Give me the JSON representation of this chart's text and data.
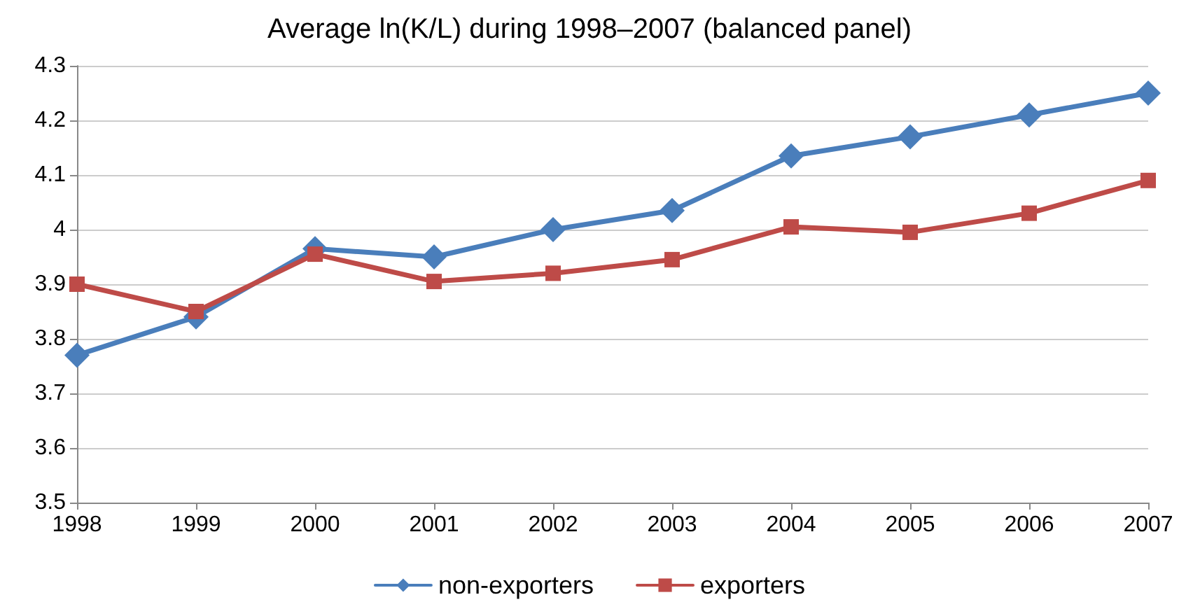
{
  "chart_data": {
    "type": "line",
    "title": "Average ln(K/L) during 1998–2007 (balanced panel)",
    "categories": [
      "1998",
      "1999",
      "2000",
      "2001",
      "2002",
      "2003",
      "2004",
      "2005",
      "2006",
      "2007"
    ],
    "series": [
      {
        "name": "non-exporters",
        "color": "#4a7ebb",
        "marker": "diamond",
        "values": [
          3.77,
          3.84,
          3.965,
          3.95,
          4.0,
          4.035,
          4.135,
          4.17,
          4.21,
          4.25
        ]
      },
      {
        "name": "exporters",
        "color": "#be4b48",
        "marker": "square",
        "values": [
          3.9,
          3.85,
          3.955,
          3.905,
          3.92,
          3.945,
          4.005,
          3.995,
          4.03,
          4.09
        ]
      }
    ],
    "ylim": [
      3.5,
      4.3
    ],
    "yticks": [
      3.5,
      3.6,
      3.7,
      3.8,
      3.9,
      {
        "value": 4,
        "label": "4"
      },
      4.1,
      4.2,
      4.3
    ],
    "grid": "y",
    "legend": "bottom",
    "line_style": "solid"
  }
}
